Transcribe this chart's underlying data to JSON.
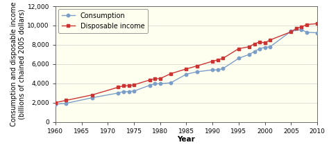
{
  "consumption_years": [
    1960,
    1962,
    1967,
    1972,
    1973,
    1974,
    1975,
    1978,
    1979,
    1980,
    1982,
    1985,
    1987,
    1990,
    1991,
    1992,
    1995,
    1997,
    1998,
    1999,
    2000,
    2001,
    2005,
    2007,
    2008,
    2010
  ],
  "consumption_values": [
    1837,
    1928,
    2508,
    3000,
    3150,
    3150,
    3200,
    3800,
    3950,
    3970,
    4050,
    4950,
    5200,
    5400,
    5400,
    5530,
    6600,
    7000,
    7300,
    7600,
    7740,
    7800,
    9400,
    9580,
    9300,
    9245
  ],
  "disposable_years": [
    1960,
    1962,
    1967,
    1972,
    1973,
    1974,
    1975,
    1978,
    1979,
    1980,
    1982,
    1985,
    1987,
    1990,
    1991,
    1992,
    1995,
    1997,
    1998,
    1999,
    2000,
    2001,
    2005,
    2006,
    2007,
    2008,
    2010
  ],
  "disposable_values": [
    2005,
    2230,
    2800,
    3600,
    3750,
    3750,
    3850,
    4350,
    4480,
    4500,
    5000,
    5500,
    5800,
    6300,
    6430,
    6600,
    7600,
    7800,
    8100,
    8300,
    8200,
    8500,
    9350,
    9700,
    9850,
    10100,
    10200
  ],
  "plot_bg_color": "#FFFFF0",
  "fig_bg_color": "#FFFFFF",
  "consumption_color": "#7B9EC9",
  "disposable_color": "#CC3333",
  "ylabel": "Consumption and disposable income\n(billions of chained 2005 dollars)",
  "xlabel": "Year",
  "ylim": [
    0,
    12000
  ],
  "xlim": [
    1960,
    2010
  ],
  "yticks": [
    0,
    2000,
    4000,
    6000,
    8000,
    10000,
    12000
  ],
  "xticks": [
    1960,
    1965,
    1970,
    1975,
    1980,
    1985,
    1990,
    1995,
    2000,
    2005,
    2010
  ],
  "legend_consumption": "Consumption",
  "legend_disposable": "Disposable income",
  "axis_fontsize": 7,
  "legend_fontsize": 7,
  "tick_fontsize": 6.5
}
